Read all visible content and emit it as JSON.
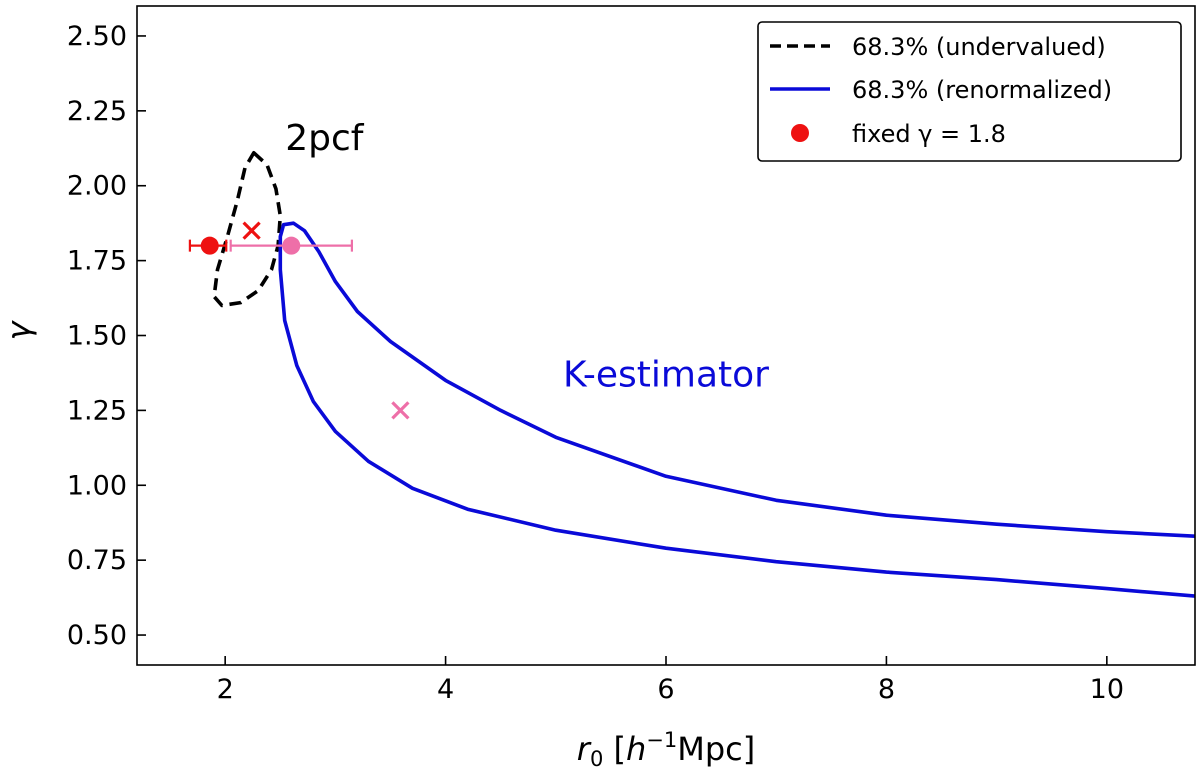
{
  "chart_data": {
    "type": "line",
    "xlabel": "r₀ [h⁻¹Mpc]",
    "xlabel_parts": {
      "base": "r",
      "sub": "0",
      "pre": " [",
      "h": "h",
      "exp": "−1",
      "post": "Mpc]"
    },
    "ylabel": "γ",
    "xlim": [
      1.2,
      10.8
    ],
    "ylim": [
      0.4,
      2.6
    ],
    "xticks": [
      2,
      4,
      6,
      8,
      10
    ],
    "xtick_labels": [
      "2",
      "4",
      "6",
      "8",
      "10"
    ],
    "yticks": [
      0.5,
      0.75,
      1.0,
      1.25,
      1.5,
      1.75,
      2.0,
      2.25,
      2.5
    ],
    "ytick_labels": [
      "0.50",
      "0.75",
      "1.00",
      "1.25",
      "1.50",
      "1.75",
      "2.00",
      "2.25",
      "2.50"
    ],
    "grid": false,
    "legend_position": "top-right",
    "colors": {
      "undervalued": "#000000",
      "renormalized": "#0a0ad8",
      "red": "#ee1111",
      "pink": "#ee6fa8"
    },
    "legend": [
      {
        "label": "68.3% (undervalued)",
        "style": "dashed",
        "color": "#000000"
      },
      {
        "label": "68.3% (renormalized)",
        "style": "solid",
        "color": "#0a0ad8"
      },
      {
        "label": "fixed γ = 1.8",
        "style": "marker",
        "color": "#ee1111"
      }
    ],
    "annotations": [
      {
        "text": "2pcf",
        "x": 2.9,
        "y": 2.12,
        "color": "#000000"
      },
      {
        "text": "K-estimator",
        "x": 6.0,
        "y": 1.33,
        "color": "#0a0ad8"
      }
    ],
    "series": [
      {
        "name": "68.3% (undervalued)",
        "style": "dashed",
        "color": "#000000",
        "closed": true,
        "points": [
          [
            2.26,
            2.11
          ],
          [
            2.38,
            2.07
          ],
          [
            2.46,
            1.99
          ],
          [
            2.5,
            1.9
          ],
          [
            2.48,
            1.8
          ],
          [
            2.42,
            1.72
          ],
          [
            2.3,
            1.65
          ],
          [
            2.14,
            1.61
          ],
          [
            1.97,
            1.6
          ],
          [
            1.9,
            1.63
          ],
          [
            1.93,
            1.72
          ],
          [
            2.02,
            1.83
          ],
          [
            2.11,
            1.95
          ],
          [
            2.18,
            2.06
          ],
          [
            2.26,
            2.11
          ]
        ]
      },
      {
        "name": "68.3% (renormalized)",
        "style": "solid",
        "color": "#0a0ad8",
        "closed": false,
        "points": [
          [
            10.8,
            0.83
          ],
          [
            10.0,
            0.845
          ],
          [
            9.0,
            0.87
          ],
          [
            8.0,
            0.9
          ],
          [
            7.0,
            0.95
          ],
          [
            6.0,
            1.03
          ],
          [
            5.0,
            1.16
          ],
          [
            4.5,
            1.25
          ],
          [
            4.0,
            1.35
          ],
          [
            3.5,
            1.48
          ],
          [
            3.2,
            1.58
          ],
          [
            3.0,
            1.68
          ],
          [
            2.85,
            1.78
          ],
          [
            2.72,
            1.85
          ],
          [
            2.62,
            1.875
          ],
          [
            2.53,
            1.87
          ],
          [
            2.5,
            1.83
          ],
          [
            2.5,
            1.72
          ],
          [
            2.54,
            1.55
          ],
          [
            2.65,
            1.4
          ],
          [
            2.8,
            1.28
          ],
          [
            3.0,
            1.18
          ],
          [
            3.3,
            1.08
          ],
          [
            3.7,
            0.99
          ],
          [
            4.2,
            0.92
          ],
          [
            5.0,
            0.85
          ],
          [
            6.0,
            0.79
          ],
          [
            7.0,
            0.745
          ],
          [
            8.0,
            0.71
          ],
          [
            9.0,
            0.685
          ],
          [
            10.0,
            0.655
          ],
          [
            10.8,
            0.63
          ]
        ]
      },
      {
        "name": "2pcf best fit",
        "style": "cross",
        "color": "#ee1111",
        "points": [
          [
            2.24,
            1.85
          ]
        ]
      },
      {
        "name": "K-estimator best fit",
        "style": "cross",
        "color": "#ee6fa8",
        "points": [
          [
            3.59,
            1.25
          ]
        ]
      },
      {
        "name": "fixed γ = 1.8 (2pcf)",
        "style": "point_errorbar",
        "color": "#ee1111",
        "points": [
          {
            "x": 1.86,
            "y": 1.8,
            "xerr_low": 0.18,
            "xerr_high": 0.15
          }
        ]
      },
      {
        "name": "fixed γ = 1.8 (K-estimator)",
        "style": "point_errorbar",
        "color": "#ee6fa8",
        "points": [
          {
            "x": 2.6,
            "y": 1.8,
            "xerr_low": 0.55,
            "xerr_high": 0.55
          }
        ]
      }
    ]
  }
}
